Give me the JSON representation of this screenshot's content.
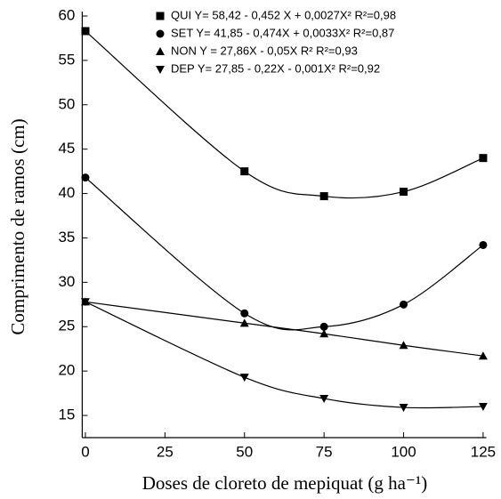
{
  "chart_data": {
    "type": "scatter",
    "x_label": "Doses de cloreto de mepiquat (g ha⁻¹)",
    "y_label": "Comprimento de ramos (cm)",
    "x": [
      0,
      50,
      75,
      100,
      125
    ],
    "series": [
      {
        "name": "QUI Y= 58,42 - 0,452 X + 0,0027X²  R²=0,98",
        "color": "#000000",
        "marker": "square",
        "values": [
          58.3,
          42.5,
          39.7,
          40.2,
          44.0
        ]
      },
      {
        "name": "SET Y= 41,85 - 0,474X + 0,0033X²  R²=0,87",
        "color": "#000000",
        "marker": "circle",
        "values": [
          41.8,
          26.5,
          25.0,
          27.5,
          34.2
        ]
      },
      {
        "name": "NON Y = 27,86X - 0,05X R²  R²=0,93",
        "color": "#000000",
        "marker": "triangle-up",
        "values": [
          27.8,
          25.4,
          24.2,
          22.9,
          21.7
        ]
      },
      {
        "name": "DEP Y= 27,85 - 0,22X - 0,001X²  R²=0,92",
        "color": "#000000",
        "marker": "triangle-down",
        "values": [
          27.8,
          19.3,
          16.9,
          15.9,
          16.0
        ]
      }
    ],
    "xlim": [
      -1,
      126
    ],
    "xticks": [
      0,
      25,
      50,
      75,
      100,
      125
    ],
    "ylim": [
      12.5,
      60
    ],
    "yticks": [
      15,
      20,
      25,
      30,
      35,
      40,
      45,
      50,
      55,
      60
    ]
  }
}
